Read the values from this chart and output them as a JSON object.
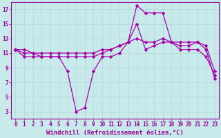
{
  "bg_color": "#c8eaea",
  "line_color": "#aa00aa",
  "grid_color": "#b0d8d8",
  "xlabel": "Windchill (Refroidissement éolien,°C)",
  "xlim": [
    -0.5,
    23.5
  ],
  "ylim": [
    2.0,
    18.0
  ],
  "xticks": [
    0,
    1,
    2,
    3,
    4,
    5,
    6,
    7,
    8,
    9,
    10,
    11,
    12,
    13,
    14,
    15,
    16,
    17,
    18,
    19,
    20,
    21,
    22,
    23
  ],
  "yticks": [
    3,
    5,
    7,
    9,
    11,
    13,
    15,
    17
  ],
  "line1_y": [
    11.5,
    11.5,
    11.0,
    10.5,
    10.5,
    10.5,
    8.5,
    3.0,
    3.5,
    8.5,
    10.5,
    10.5,
    11.0,
    12.5,
    17.5,
    16.5,
    16.5,
    16.5,
    12.5,
    12.5,
    12.5,
    12.5,
    11.5,
    7.5
  ],
  "line2_y": [
    11.5,
    10.5,
    10.5,
    10.5,
    10.5,
    10.5,
    10.5,
    10.5,
    10.5,
    10.5,
    11.0,
    11.5,
    12.0,
    12.5,
    15.0,
    11.5,
    12.0,
    12.5,
    12.5,
    11.5,
    11.5,
    11.5,
    10.5,
    8.0
  ],
  "line3_y": [
    11.5,
    11.0,
    11.0,
    11.0,
    11.0,
    11.0,
    11.0,
    11.0,
    11.0,
    11.0,
    11.5,
    11.5,
    12.0,
    12.5,
    13.0,
    12.5,
    12.5,
    13.0,
    12.5,
    12.0,
    12.0,
    12.5,
    12.0,
    8.5
  ],
  "marker_size": 2.5,
  "line_width": 0.9,
  "xlabel_fontsize": 6.5,
  "tick_fontsize": 5.5,
  "xlabel_color": "#990099",
  "tick_color": "#990099",
  "axes_color": "#990099",
  "spine_lw": 0.8
}
